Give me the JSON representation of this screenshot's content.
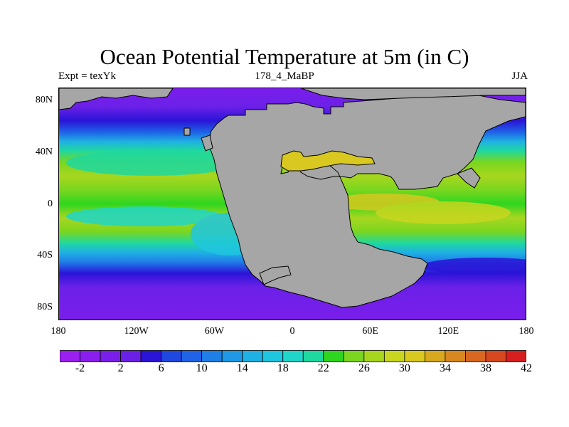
{
  "header": {
    "title": "Ocean Potential Temperature at 5m (in C)",
    "left": "Expt = texYk",
    "center": "178_4_MaBP",
    "right": "JJA"
  },
  "axes": {
    "lat_ticks": [
      {
        "label": "80N",
        "value": 80
      },
      {
        "label": "40N",
        "value": 40
      },
      {
        "label": "0",
        "value": 0
      },
      {
        "label": "40S",
        "value": -40
      },
      {
        "label": "80S",
        "value": -80
      }
    ],
    "lon_ticks": [
      {
        "label": "180",
        "value": -180
      },
      {
        "label": "120W",
        "value": -120
      },
      {
        "label": "60W",
        "value": -60
      },
      {
        "label": "0",
        "value": 0
      },
      {
        "label": "60E",
        "value": 60
      },
      {
        "label": "120E",
        "value": 120
      },
      {
        "label": "180",
        "value": 180
      }
    ],
    "lat_range": [
      -90,
      90
    ],
    "lon_range": [
      -180,
      180
    ]
  },
  "colorbar": {
    "colors": [
      "#9c1ff2",
      "#8a1eef",
      "#7a1eeb",
      "#6b20e8",
      "#2a14d8",
      "#1f48e0",
      "#1f63e6",
      "#1f7fe8",
      "#1f99e6",
      "#1fb0e4",
      "#1fc6e0",
      "#1fd6c8",
      "#1fd8a0",
      "#2ed61f",
      "#7ad61f",
      "#a8d61f",
      "#c8d61f",
      "#d8c81f",
      "#d8a81f",
      "#d8881f",
      "#d8681f",
      "#d8481f",
      "#d81f1f"
    ],
    "labels": [
      {
        "text": "-2",
        "index": 1
      },
      {
        "text": "2",
        "index": 3
      },
      {
        "text": "6",
        "index": 5
      },
      {
        "text": "10",
        "index": 7
      },
      {
        "text": "14",
        "index": 9
      },
      {
        "text": "18",
        "index": 11
      },
      {
        "text": "22",
        "index": 13
      },
      {
        "text": "26",
        "index": 15
      },
      {
        "text": "30",
        "index": 17
      },
      {
        "text": "34",
        "index": 19
      },
      {
        "text": "38",
        "index": 21
      },
      {
        "text": "42",
        "index": 23
      }
    ]
  },
  "colors": {
    "land": "#a6a6a6",
    "cold_ocean": "#7a1eeb",
    "deep_cold": "#6b20e8"
  }
}
